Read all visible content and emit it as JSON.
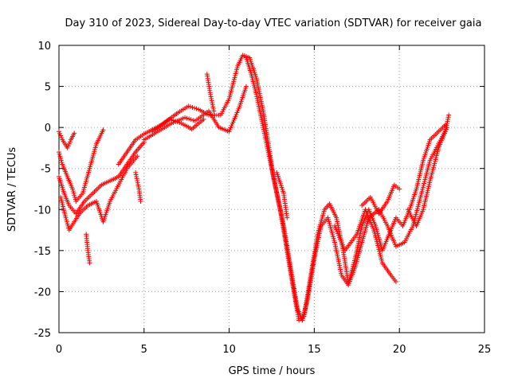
{
  "chart_data": {
    "type": "scatter",
    "title": "Day 310 of 2023, Sidereal Day-to-day VTEC variation (SDTVAR) for receiver gaia",
    "xlabel": "GPS time / hours",
    "ylabel": "SDTVAR / TECUs",
    "xlim": [
      0,
      25
    ],
    "ylim": [
      -25,
      10
    ],
    "xticks": [
      0,
      5,
      10,
      15,
      20,
      25
    ],
    "yticks": [
      -25,
      -20,
      -15,
      -10,
      -5,
      0,
      5,
      10
    ],
    "grid": true,
    "marker": "+",
    "series": [
      {
        "name": "SDTVAR",
        "color": "#ff0000",
        "bands": [
          [
            [
              0.0,
              -0.5
            ],
            [
              0.2,
              -1.5
            ],
            [
              0.5,
              -2.5
            ],
            [
              0.7,
              -1.5
            ],
            [
              0.9,
              -0.7
            ]
          ],
          [
            [
              0.0,
              -3.0
            ],
            [
              0.2,
              -4.5
            ],
            [
              0.5,
              -6.0
            ],
            [
              0.8,
              -7.5
            ],
            [
              1.0,
              -9.0
            ],
            [
              1.4,
              -8.0
            ],
            [
              1.8,
              -5.0
            ],
            [
              2.2,
              -2.0
            ],
            [
              2.6,
              -0.3
            ]
          ],
          [
            [
              0.0,
              -6.0
            ],
            [
              0.3,
              -8.0
            ],
            [
              0.6,
              -9.5
            ],
            [
              1.0,
              -10.5
            ],
            [
              1.5,
              -9.0
            ],
            [
              2.0,
              -8.0
            ],
            [
              2.5,
              -7.0
            ],
            [
              3.0,
              -6.5
            ],
            [
              3.5,
              -6.0
            ],
            [
              4.0,
              -4.5
            ],
            [
              4.5,
              -3.0
            ],
            [
              5.0,
              -1.8
            ]
          ],
          [
            [
              0.1,
              -8.5
            ],
            [
              0.4,
              -11.0
            ],
            [
              0.6,
              -12.5
            ],
            [
              0.9,
              -11.5
            ],
            [
              1.2,
              -10.5
            ],
            [
              1.7,
              -9.5
            ],
            [
              2.2,
              -9.0
            ],
            [
              2.6,
              -11.5
            ],
            [
              3.0,
              -9.0
            ],
            [
              3.5,
              -7.0
            ],
            [
              4.0,
              -5.0
            ],
            [
              4.6,
              -3.5
            ]
          ],
          [
            [
              3.5,
              -4.5
            ],
            [
              4.0,
              -3.0
            ],
            [
              4.5,
              -1.5
            ],
            [
              5.0,
              -0.8
            ],
            [
              6.0,
              0.3
            ],
            [
              7.0,
              1.8
            ],
            [
              7.6,
              2.6
            ],
            [
              8.2,
              2.2
            ],
            [
              8.8,
              1.5
            ],
            [
              9.5,
              1.5
            ],
            [
              10.0,
              3.5
            ],
            [
              10.5,
              7.5
            ],
            [
              10.8,
              8.8
            ],
            [
              11.2,
              8.5
            ],
            [
              11.6,
              6.0
            ],
            [
              12.0,
              2.0
            ],
            [
              12.3,
              -2.0
            ],
            [
              12.6,
              -6.0
            ],
            [
              13.0,
              -10.0
            ],
            [
              13.4,
              -15.0
            ],
            [
              13.8,
              -20.0
            ],
            [
              14.1,
              -23.5
            ],
            [
              14.4,
              -23.0
            ],
            [
              14.8,
              -18.0
            ],
            [
              15.2,
              -13.0
            ],
            [
              15.6,
              -10.0
            ],
            [
              15.9,
              -9.3
            ],
            [
              16.3,
              -11.0
            ],
            [
              16.7,
              -15.0
            ],
            [
              17.0,
              -19.0
            ],
            [
              17.4,
              -16.0
            ],
            [
              17.8,
              -12.0
            ],
            [
              18.2,
              -10.0
            ],
            [
              18.6,
              -12.0
            ],
            [
              19.0,
              -15.0
            ],
            [
              19.4,
              -13.0
            ],
            [
              19.8,
              -11.0
            ],
            [
              20.2,
              -12.0
            ],
            [
              20.6,
              -10.0
            ],
            [
              21.0,
              -7.5
            ],
            [
              21.4,
              -4.0
            ],
            [
              21.8,
              -1.5
            ],
            [
              22.3,
              -0.5
            ],
            [
              22.8,
              0.5
            ]
          ],
          [
            [
              5.0,
              -1.5
            ],
            [
              5.8,
              -0.5
            ],
            [
              6.6,
              0.5
            ],
            [
              7.4,
              1.2
            ],
            [
              8.0,
              0.8
            ],
            [
              8.8,
              2.0
            ],
            [
              9.4,
              0.0
            ],
            [
              10.0,
              -0.5
            ],
            [
              10.6,
              2.5
            ],
            [
              11.0,
              5.0
            ]
          ],
          [
            [
              5.5,
              -0.5
            ],
            [
              6.5,
              1.0
            ],
            [
              7.2,
              0.5
            ],
            [
              7.8,
              -0.2
            ],
            [
              8.5,
              1.0
            ]
          ],
          [
            [
              8.7,
              6.5
            ],
            [
              8.9,
              4.0
            ],
            [
              9.1,
              2.0
            ]
          ],
          [
            [
              11.0,
              8.5
            ],
            [
              11.3,
              6.5
            ],
            [
              11.6,
              4.0
            ],
            [
              12.0,
              0.0
            ],
            [
              12.4,
              -4.0
            ],
            [
              12.8,
              -8.0
            ],
            [
              13.2,
              -12.0
            ],
            [
              13.6,
              -17.0
            ],
            [
              14.0,
              -22.0
            ],
            [
              14.3,
              -23.5
            ],
            [
              14.6,
              -21.0
            ],
            [
              15.0,
              -16.0
            ],
            [
              15.4,
              -12.0
            ],
            [
              15.8,
              -11.0
            ],
            [
              16.2,
              -14.0
            ],
            [
              16.6,
              -18.0
            ],
            [
              17.0,
              -19.2
            ],
            [
              17.4,
              -17.0
            ],
            [
              17.8,
              -14.0
            ],
            [
              18.2,
              -11.0
            ],
            [
              18.8,
              -10.0
            ],
            [
              19.3,
              -12.0
            ],
            [
              19.8,
              -14.5
            ],
            [
              20.3,
              -14.0
            ],
            [
              20.8,
              -12.0
            ],
            [
              21.3,
              -8.0
            ],
            [
              21.8,
              -4.0
            ],
            [
              22.3,
              -2.0
            ],
            [
              22.8,
              0.0
            ]
          ],
          [
            [
              16.2,
              -12.0
            ],
            [
              16.8,
              -15.0
            ],
            [
              17.5,
              -13.0
            ],
            [
              18.0,
              -10.0
            ],
            [
              18.5,
              -12.5
            ],
            [
              19.0,
              -16.5
            ],
            [
              19.5,
              -18.0
            ],
            [
              19.8,
              -18.8
            ]
          ],
          [
            [
              12.8,
              -5.5
            ],
            [
              13.2,
              -8.0
            ],
            [
              13.4,
              -11.0
            ]
          ],
          [
            [
              17.8,
              -9.5
            ],
            [
              18.3,
              -8.5
            ],
            [
              18.8,
              -10.5
            ],
            [
              19.3,
              -9.0
            ],
            [
              19.7,
              -7.0
            ],
            [
              20.0,
              -7.5
            ]
          ],
          [
            [
              20.5,
              -10.0
            ],
            [
              21.0,
              -12.0
            ],
            [
              21.4,
              -10.0
            ],
            [
              21.8,
              -6.5
            ],
            [
              22.3,
              -2.5
            ],
            [
              22.7,
              -0.5
            ],
            [
              22.9,
              1.5
            ]
          ],
          [
            [
              1.6,
              -13.0
            ],
            [
              1.7,
              -15.0
            ],
            [
              1.8,
              -16.5
            ]
          ],
          [
            [
              4.5,
              -5.5
            ],
            [
              4.7,
              -7.5
            ],
            [
              4.8,
              -9.0
            ]
          ]
        ]
      }
    ]
  }
}
